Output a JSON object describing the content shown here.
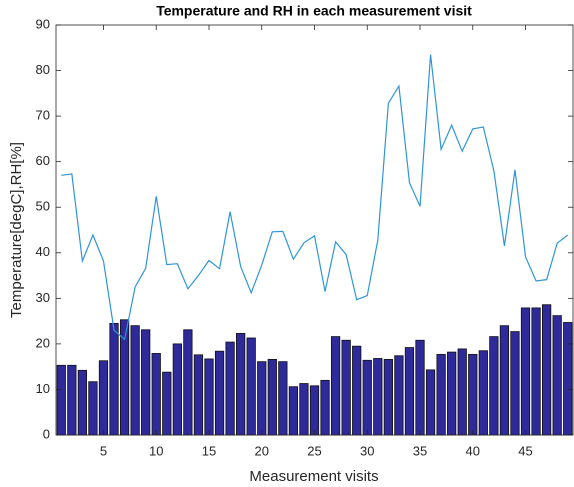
{
  "chart_data": {
    "type": "bar",
    "title": "Temperature and RH in each measurement visit",
    "x_label": "Measurement visits",
    "y_label": "Temperature[degC],RH[%]",
    "x": [
      1,
      2,
      3,
      4,
      5,
      6,
      7,
      8,
      9,
      10,
      11,
      12,
      13,
      14,
      15,
      16,
      17,
      18,
      19,
      20,
      21,
      22,
      23,
      24,
      25,
      26,
      27,
      28,
      29,
      30,
      31,
      32,
      33,
      34,
      35,
      36,
      37,
      38,
      39,
      40,
      41,
      42,
      43,
      44,
      45,
      46,
      47,
      48,
      49
    ],
    "series": [
      {
        "type": "bar",
        "color": "#2e2a99",
        "values": [
          15.3,
          15.3,
          14.2,
          11.7,
          16.3,
          24.5,
          25.3,
          24,
          23.1,
          17.9,
          13.8,
          20,
          23.1,
          17.6,
          16.7,
          18.4,
          20.4,
          22.3,
          21.3,
          16.1,
          16.6,
          16.1,
          10.6,
          11.3,
          10.8,
          12,
          21.6,
          20.8,
          19.5,
          16.4,
          16.8,
          16.6,
          17.4,
          19.2,
          20.8,
          14.3,
          17.7,
          18.2,
          18.9,
          17.7,
          18.5,
          21.6,
          24,
          22.7,
          27.9,
          27.9,
          28.6,
          26.2,
          24.7
        ]
      },
      {
        "type": "line",
        "color": "#2f95d8",
        "values": [
          57,
          57.3,
          38.2,
          43.9,
          38.2,
          23,
          21,
          32.5,
          36.6,
          52.4,
          37.4,
          37.6,
          32.1,
          35,
          38.3,
          36.5,
          49,
          37,
          31.2,
          37.3,
          44.6,
          44.7,
          38.6,
          42.2,
          43.7,
          31.5,
          42.4,
          39.6,
          29.7,
          30.6,
          42.8,
          72.8,
          76.6,
          55.4,
          50.2,
          83.5,
          62.7,
          68,
          62.3,
          67.2,
          67.6,
          58,
          41.5,
          58.2,
          39.1,
          33.8,
          34.1,
          42.1,
          43.9
        ]
      }
    ],
    "xlim": [
      0.5,
      49.5
    ],
    "xticks": [
      5,
      10,
      15,
      20,
      25,
      30,
      35,
      40,
      45
    ],
    "ylim": [
      0,
      90
    ],
    "yticks": [
      0,
      10,
      20,
      30,
      40,
      50,
      60,
      70,
      80,
      90
    ],
    "grid": false
  }
}
